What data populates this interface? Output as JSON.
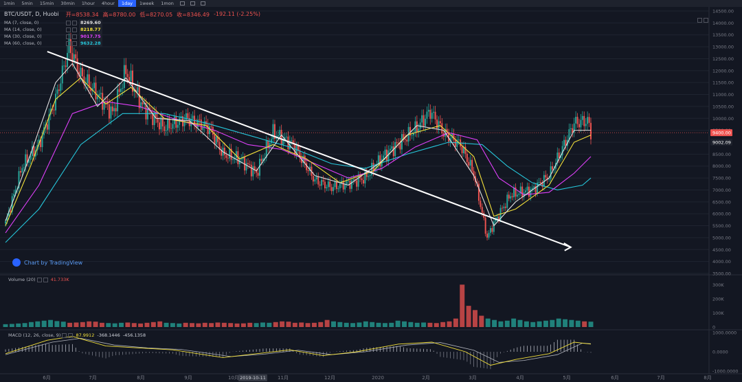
{
  "toolbar": {
    "timeframes": [
      "1min",
      "5min",
      "15min",
      "30min",
      "1hour",
      "4hour",
      "1day",
      "1week",
      "1mon"
    ],
    "active": "1day"
  },
  "header": {
    "symbol": "BTC/USDT, D, Huobi",
    "open_label": "开=8538.34",
    "high_label": "高=8780.00",
    "low_label": "低=8270.05",
    "close_label": "收=8346.49",
    "change_label": "-192.11 (-2.25%)"
  },
  "indicators": [
    {
      "label": "MA (7, close, 0)",
      "value": "8269.60",
      "color": "#e0e0e0"
    },
    {
      "label": "MA (14, close, 0)",
      "value": "8218.77",
      "color": "#f5e23b"
    },
    {
      "label": "MA (30, close, 0)",
      "value": "9017.75",
      "color": "#e040fb"
    },
    {
      "label": "MA (60, close, 0)",
      "value": "9632.28",
      "color": "#26c6da"
    }
  ],
  "volume_legend": {
    "label": "Volume (20)",
    "value": "41.733K"
  },
  "macd_legend": {
    "label": "MACD (12, 26, close, 9)",
    "v1": "87.9912",
    "v2": "-368.1446",
    "v3": "-456.1358"
  },
  "watermark": "Chart by TradingView",
  "colors": {
    "up": "#26a69a",
    "down": "#ef5350",
    "bg": "#131722",
    "ma7": "#e0e0e0",
    "ma14": "#f5e23b",
    "ma30": "#e040fb",
    "ma60": "#26c6da",
    "trend": "#ffffff",
    "macd": "#f5e23b"
  },
  "chart_data": {
    "type": "line",
    "title": "BTC/USDT, D, Huobi",
    "x_axis_labels": [
      "6月",
      "7月",
      "8月",
      "9月",
      "10月",
      "11月",
      "12月",
      "2020",
      "2月",
      "3月",
      "4月",
      "5月",
      "6月",
      "7月",
      "8月"
    ],
    "crosshair_date": "2019-10-11",
    "price_axis": {
      "min": 3500,
      "max": 14500,
      "step": 500
    },
    "price_ticks": [
      "14500.00",
      "14000.00",
      "13500.00",
      "13000.00",
      "12500.00",
      "12000.00",
      "11500.00",
      "11000.00",
      "10500.00",
      "10000.00",
      "9500.00",
      "9000.00",
      "8500.00",
      "8000.00",
      "7500.00",
      "7000.00",
      "6500.00",
      "6000.00",
      "5500.00",
      "5000.00",
      "4500.00",
      "4000.00",
      "3500.00"
    ],
    "price_badges": [
      {
        "value": "9400.00",
        "color": "#ef5350"
      },
      {
        "value": "9002.09",
        "color": "#1e222d"
      }
    ],
    "volume_ticks": [
      "300K",
      "200K",
      "100K",
      "0"
    ],
    "macd_ticks": [
      "1000.0000",
      "0.0000",
      "-1000.0000"
    ],
    "price_path": [
      [
        0,
        5600
      ],
      [
        10,
        8000
      ],
      [
        20,
        8900
      ],
      [
        30,
        10800
      ],
      [
        38,
        13000
      ],
      [
        45,
        11800
      ],
      [
        55,
        11000
      ],
      [
        64,
        10200
      ],
      [
        72,
        12000
      ],
      [
        82,
        10500
      ],
      [
        95,
        9600
      ],
      [
        108,
        10000
      ],
      [
        122,
        9600
      ],
      [
        130,
        8500
      ],
      [
        140,
        8300
      ],
      [
        150,
        7700
      ],
      [
        160,
        9400
      ],
      [
        172,
        8900
      ],
      [
        185,
        7400
      ],
      [
        195,
        7100
      ],
      [
        206,
        7300
      ],
      [
        215,
        7500
      ],
      [
        226,
        8400
      ],
      [
        236,
        9000
      ],
      [
        246,
        9600
      ],
      [
        254,
        10300
      ],
      [
        262,
        9400
      ],
      [
        272,
        8900
      ],
      [
        280,
        7700
      ],
      [
        288,
        5000
      ],
      [
        292,
        5600
      ],
      [
        302,
        6800
      ],
      [
        315,
        7000
      ],
      [
        325,
        7600
      ],
      [
        332,
        8600
      ],
      [
        340,
        9800
      ],
      [
        348,
        9900
      ],
      [
        350,
        9400
      ]
    ],
    "ma7_path": [
      [
        0,
        5700
      ],
      [
        15,
        8500
      ],
      [
        30,
        11500
      ],
      [
        40,
        12300
      ],
      [
        55,
        10500
      ],
      [
        72,
        11700
      ],
      [
        90,
        10000
      ],
      [
        110,
        9900
      ],
      [
        130,
        8600
      ],
      [
        150,
        7800
      ],
      [
        165,
        9300
      ],
      [
        185,
        7600
      ],
      [
        205,
        7200
      ],
      [
        225,
        8200
      ],
      [
        246,
        9700
      ],
      [
        262,
        9500
      ],
      [
        280,
        7600
      ],
      [
        292,
        5500
      ],
      [
        305,
        6500
      ],
      [
        325,
        7500
      ],
      [
        340,
        9500
      ],
      [
        350,
        9500
      ]
    ],
    "ma14_path": [
      [
        0,
        5500
      ],
      [
        15,
        8000
      ],
      [
        30,
        10800
      ],
      [
        45,
        11700
      ],
      [
        60,
        10600
      ],
      [
        75,
        11300
      ],
      [
        95,
        10000
      ],
      [
        120,
        9700
      ],
      [
        140,
        8300
      ],
      [
        160,
        8900
      ],
      [
        180,
        8300
      ],
      [
        200,
        7300
      ],
      [
        220,
        7800
      ],
      [
        240,
        9300
      ],
      [
        260,
        9700
      ],
      [
        280,
        8400
      ],
      [
        292,
        5900
      ],
      [
        305,
        6200
      ],
      [
        325,
        7200
      ],
      [
        340,
        9000
      ],
      [
        350,
        9300
      ]
    ],
    "ma30_path": [
      [
        0,
        5200
      ],
      [
        20,
        7200
      ],
      [
        40,
        10200
      ],
      [
        60,
        10700
      ],
      [
        80,
        10500
      ],
      [
        100,
        10000
      ],
      [
        125,
        9500
      ],
      [
        145,
        8900
      ],
      [
        165,
        8700
      ],
      [
        185,
        8100
      ],
      [
        205,
        7500
      ],
      [
        225,
        7900
      ],
      [
        245,
        8800
      ],
      [
        265,
        9400
      ],
      [
        282,
        9100
      ],
      [
        295,
        7500
      ],
      [
        310,
        6800
      ],
      [
        325,
        6900
      ],
      [
        340,
        7700
      ],
      [
        350,
        8400
      ]
    ],
    "ma60_path": [
      [
        0,
        4800
      ],
      [
        20,
        6200
      ],
      [
        45,
        8900
      ],
      [
        70,
        10200
      ],
      [
        95,
        10200
      ],
      [
        120,
        9800
      ],
      [
        145,
        9300
      ],
      [
        170,
        8800
      ],
      [
        195,
        8100
      ],
      [
        215,
        7900
      ],
      [
        240,
        8500
      ],
      [
        265,
        9000
      ],
      [
        285,
        8900
      ],
      [
        300,
        8000
      ],
      [
        315,
        7300
      ],
      [
        330,
        7000
      ],
      [
        345,
        7200
      ],
      [
        350,
        7500
      ]
    ],
    "trendline": [
      [
        25,
        12800
      ],
      [
        338,
        4600
      ]
    ],
    "volume": [
      20,
      22,
      25,
      28,
      35,
      40,
      45,
      50,
      42,
      38,
      30,
      32,
      35,
      40,
      38,
      30,
      28,
      26,
      30,
      32,
      28,
      25,
      30,
      35,
      40,
      30,
      28,
      25,
      30,
      28,
      26,
      30,
      28,
      32,
      30,
      28,
      25,
      26,
      30,
      28,
      32,
      30,
      35,
      40,
      38,
      30,
      32,
      28,
      30,
      35,
      50,
      40,
      35,
      30,
      28,
      32,
      40,
      35,
      30,
      28,
      30,
      45,
      40,
      35,
      30,
      32,
      30,
      28,
      35,
      40,
      60,
      300,
      150,
      120,
      80,
      60,
      50,
      40,
      45,
      60,
      50,
      40,
      35,
      40,
      45,
      50,
      60,
      55,
      50,
      45,
      40,
      38
    ],
    "macd_diff": [
      [
        0,
        -100
      ],
      [
        25,
        600
      ],
      [
        40,
        800
      ],
      [
        60,
        300
      ],
      [
        80,
        200
      ],
      [
        100,
        100
      ],
      [
        130,
        -300
      ],
      [
        150,
        -100
      ],
      [
        170,
        100
      ],
      [
        190,
        -200
      ],
      [
        210,
        0
      ],
      [
        235,
        400
      ],
      [
        255,
        500
      ],
      [
        275,
        0
      ],
      [
        290,
        -700
      ],
      [
        305,
        -400
      ],
      [
        325,
        -100
      ],
      [
        340,
        500
      ],
      [
        350,
        400
      ]
    ],
    "macd_signal": [
      [
        0,
        -150
      ],
      [
        28,
        500
      ],
      [
        45,
        700
      ],
      [
        65,
        350
      ],
      [
        85,
        200
      ],
      [
        105,
        120
      ],
      [
        135,
        -250
      ],
      [
        155,
        -120
      ],
      [
        175,
        80
      ],
      [
        195,
        -150
      ],
      [
        215,
        0
      ],
      [
        240,
        350
      ],
      [
        260,
        480
      ],
      [
        280,
        80
      ],
      [
        295,
        -550
      ],
      [
        310,
        -450
      ],
      [
        330,
        -150
      ],
      [
        345,
        450
      ],
      [
        350,
        420
      ]
    ]
  }
}
